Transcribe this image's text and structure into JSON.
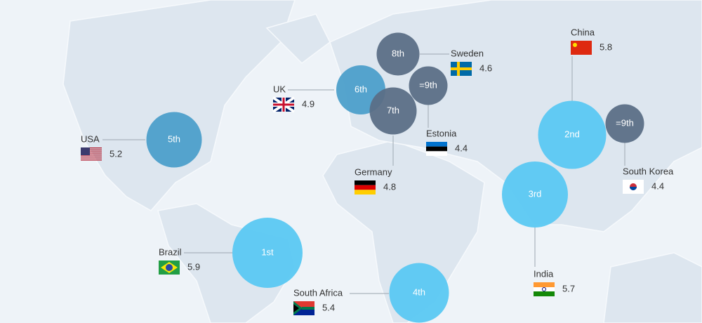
{
  "countries": [
    {
      "name": "Brazil",
      "rank": "1st",
      "value": 5.9,
      "color": "#5ac8f2"
    },
    {
      "name": "China",
      "rank": "2nd",
      "value": 5.8,
      "color": "#5ac8f2"
    },
    {
      "name": "India",
      "rank": "3rd",
      "value": 5.7,
      "color": "#5ac8f2"
    },
    {
      "name": "South Africa",
      "rank": "4th",
      "value": 5.4,
      "color": "#5ac8f2"
    },
    {
      "name": "USA",
      "rank": "5th",
      "value": 5.2,
      "color": "#4c9fca"
    },
    {
      "name": "UK",
      "rank": "6th",
      "value": 4.9,
      "color": "#4c9fca"
    },
    {
      "name": "Germany",
      "rank": "7th",
      "value": 4.8,
      "color": "#5b6f86"
    },
    {
      "name": "Sweden",
      "rank": "8th",
      "value": 4.6,
      "color": "#5b6f86"
    },
    {
      "name": "Estonia",
      "rank": "=9th",
      "value": 4.4,
      "color": "#5b6f86"
    },
    {
      "name": "South Korea",
      "rank": "=9th",
      "value": 4.4,
      "color": "#5b6f86"
    }
  ]
}
